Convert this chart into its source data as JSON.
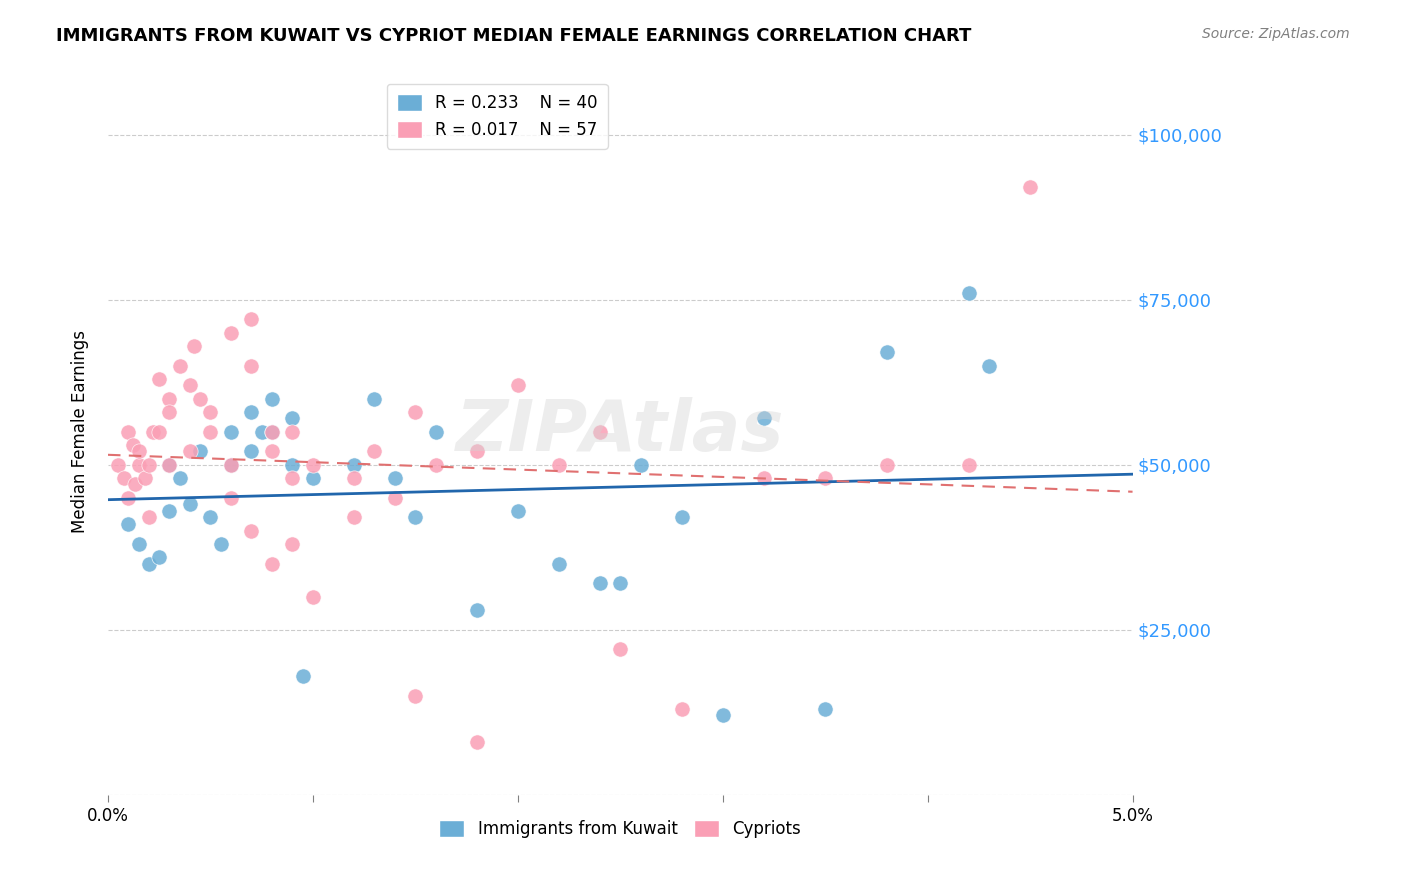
{
  "title": "IMMIGRANTS FROM KUWAIT VS CYPRIOT MEDIAN FEMALE EARNINGS CORRELATION CHART",
  "source": "Source: ZipAtlas.com",
  "xlabel_bottom": "",
  "ylabel": "Median Female Earnings",
  "xlim": [
    0.0,
    0.05
  ],
  "ylim": [
    0,
    110000
  ],
  "xticks": [
    0.0,
    0.01,
    0.02,
    0.03,
    0.04,
    0.05
  ],
  "xticklabels": [
    "0.0%",
    "",
    "",
    "",
    "",
    "5.0%"
  ],
  "yticks_right": [
    0,
    25000,
    50000,
    75000,
    100000
  ],
  "ytick_labels_right": [
    "",
    "$25,000",
    "$50,000",
    "$75,000",
    "$100,000"
  ],
  "legend_r1": "R = 0.233",
  "legend_n1": "N = 40",
  "legend_r2": "R = 0.017",
  "legend_n2": "N = 57",
  "blue_color": "#6baed6",
  "pink_color": "#fa9fb5",
  "blue_line_color": "#2166ac",
  "pink_line_color": "#e07070",
  "axis_label_color": "#3399ff",
  "grid_color": "#cccccc",
  "background_color": "#ffffff",
  "kuwait_x": [
    0.001,
    0.002,
    0.003,
    0.0015,
    0.0025,
    0.004,
    0.003,
    0.0035,
    0.0045,
    0.005,
    0.0055,
    0.006,
    0.006,
    0.007,
    0.007,
    0.0075,
    0.008,
    0.008,
    0.009,
    0.009,
    0.0095,
    0.01,
    0.012,
    0.013,
    0.014,
    0.015,
    0.016,
    0.018,
    0.02,
    0.022,
    0.024,
    0.025,
    0.026,
    0.028,
    0.03,
    0.032,
    0.035,
    0.038,
    0.042,
    0.043
  ],
  "kuwait_y": [
    41000,
    35000,
    43000,
    38000,
    36000,
    44000,
    50000,
    48000,
    52000,
    42000,
    38000,
    55000,
    50000,
    58000,
    52000,
    55000,
    60000,
    55000,
    57000,
    50000,
    18000,
    48000,
    50000,
    60000,
    48000,
    42000,
    55000,
    28000,
    43000,
    35000,
    32000,
    32000,
    50000,
    42000,
    12000,
    57000,
    13000,
    67000,
    76000,
    65000
  ],
  "cypriot_x": [
    0.0005,
    0.0008,
    0.001,
    0.001,
    0.0012,
    0.0013,
    0.0015,
    0.0015,
    0.0018,
    0.002,
    0.002,
    0.0022,
    0.0025,
    0.0025,
    0.003,
    0.003,
    0.003,
    0.0035,
    0.004,
    0.004,
    0.0042,
    0.0045,
    0.005,
    0.005,
    0.006,
    0.006,
    0.007,
    0.007,
    0.008,
    0.008,
    0.009,
    0.009,
    0.01,
    0.012,
    0.013,
    0.014,
    0.015,
    0.016,
    0.018,
    0.02,
    0.022,
    0.024,
    0.006,
    0.007,
    0.008,
    0.009,
    0.01,
    0.012,
    0.015,
    0.018,
    0.025,
    0.028,
    0.032,
    0.035,
    0.038,
    0.042,
    0.045
  ],
  "cypriot_y": [
    50000,
    48000,
    55000,
    45000,
    53000,
    47000,
    50000,
    52000,
    48000,
    50000,
    42000,
    55000,
    63000,
    55000,
    60000,
    58000,
    50000,
    65000,
    62000,
    52000,
    68000,
    60000,
    58000,
    55000,
    70000,
    50000,
    72000,
    65000,
    55000,
    52000,
    48000,
    55000,
    50000,
    48000,
    52000,
    45000,
    58000,
    50000,
    52000,
    62000,
    50000,
    55000,
    45000,
    40000,
    35000,
    38000,
    30000,
    42000,
    15000,
    8000,
    22000,
    13000,
    48000,
    48000,
    50000,
    50000,
    92000
  ]
}
